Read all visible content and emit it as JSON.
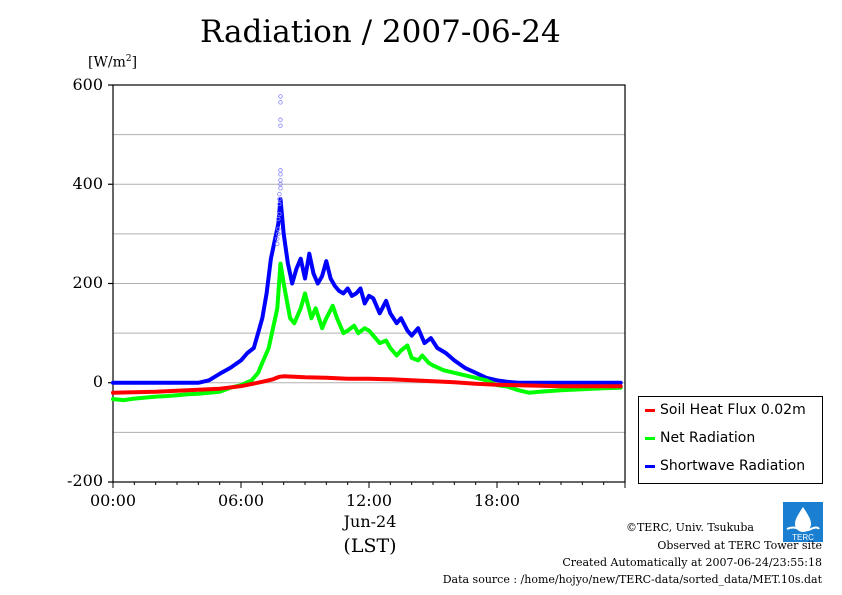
{
  "chart_data": {
    "type": "line",
    "title": "Radiation / 2007-06-24",
    "ylabel": "[W/m2]",
    "ylabel_base": "[W/m",
    "ylabel_sup": "2",
    "ylabel_end": "]",
    "xlabel": "(LST)",
    "xlabel_date": "Jun-24",
    "ylim": [
      -200,
      600
    ],
    "yticks": [
      -200,
      0,
      200,
      400,
      600
    ],
    "xlim": [
      0,
      24
    ],
    "xticks": [
      0,
      6,
      12,
      18
    ],
    "xtick_labels": [
      "00:00",
      "06:00",
      "12:00",
      "18:00"
    ],
    "grid": "horizontal",
    "legend_position": "bottom-right",
    "series": [
      {
        "name": "Soil Heat Flux 0.02m",
        "color": "#ff0000",
        "x": [
          0,
          1,
          2,
          3,
          4,
          5,
          6,
          7,
          7.5,
          7.8,
          8,
          9,
          10,
          11,
          12,
          13,
          14,
          15,
          16,
          17,
          18,
          19,
          20,
          21,
          22,
          23,
          23.8
        ],
        "values": [
          -20,
          -19,
          -18,
          -16,
          -14,
          -12,
          -7,
          2,
          7,
          12,
          13,
          11,
          10,
          8,
          8,
          7,
          5,
          3,
          1,
          -2,
          -4,
          -5,
          -6,
          -7,
          -7,
          -7,
          -7
        ]
      },
      {
        "name": "Net Radiation",
        "color": "#00ff00",
        "x": [
          0,
          0.5,
          1,
          1.5,
          2,
          2.5,
          3,
          3.5,
          4,
          4.5,
          5,
          5.5,
          6,
          6.5,
          6.8,
          7,
          7.3,
          7.5,
          7.7,
          7.85,
          8,
          8.3,
          8.5,
          8.8,
          9,
          9.3,
          9.5,
          9.8,
          10,
          10.3,
          10.5,
          10.8,
          11,
          11.3,
          11.5,
          11.8,
          12,
          12.3,
          12.5,
          12.8,
          13,
          13.3,
          13.5,
          13.8,
          14,
          14.3,
          14.5,
          14.8,
          15,
          15.5,
          16,
          16.5,
          17,
          17.5,
          18,
          18.5,
          19,
          19.5,
          20,
          21,
          22,
          23,
          23.8
        ],
        "values": [
          -33,
          -35,
          -32,
          -30,
          -28,
          -27,
          -25,
          -23,
          -22,
          -20,
          -18,
          -10,
          -5,
          5,
          20,
          40,
          70,
          110,
          150,
          240,
          200,
          130,
          120,
          150,
          180,
          130,
          150,
          110,
          130,
          155,
          130,
          100,
          105,
          115,
          100,
          110,
          105,
          90,
          80,
          85,
          70,
          55,
          65,
          75,
          50,
          45,
          55,
          40,
          35,
          25,
          20,
          15,
          10,
          5,
          -5,
          -8,
          -15,
          -20,
          -18,
          -15,
          -13,
          -11,
          -10
        ]
      },
      {
        "name": "Shortwave Radiation",
        "color": "#0000ff",
        "x": [
          0,
          1,
          2,
          3,
          4,
          4.5,
          5,
          5.5,
          6,
          6.3,
          6.6,
          6.8,
          7,
          7.2,
          7.4,
          7.6,
          7.75,
          7.85,
          8,
          8.2,
          8.4,
          8.6,
          8.8,
          9,
          9.2,
          9.4,
          9.6,
          9.8,
          10,
          10.2,
          10.4,
          10.6,
          10.8,
          11,
          11.2,
          11.4,
          11.6,
          11.8,
          12,
          12.2,
          12.5,
          12.8,
          13,
          13.3,
          13.5,
          13.8,
          14,
          14.3,
          14.6,
          14.9,
          15.2,
          15.6,
          16,
          16.5,
          17,
          17.5,
          18,
          18.5,
          19,
          20,
          21,
          22,
          23,
          23.8
        ],
        "values": [
          0,
          0,
          0,
          0,
          0,
          5,
          18,
          30,
          45,
          60,
          70,
          100,
          130,
          180,
          250,
          290,
          320,
          370,
          300,
          240,
          200,
          230,
          250,
          210,
          260,
          220,
          200,
          215,
          245,
          210,
          195,
          185,
          180,
          190,
          175,
          180,
          190,
          160,
          175,
          170,
          140,
          165,
          140,
          120,
          130,
          105,
          95,
          110,
          80,
          90,
          70,
          60,
          45,
          30,
          20,
          10,
          5,
          2,
          0,
          0,
          0,
          0,
          0,
          0
        ]
      }
    ],
    "scatter_points": {
      "name": "Shortwave Radiation (10s points)",
      "color": "#8888ff",
      "x": [
        7.85,
        7.85,
        7.85,
        7.85,
        7.85,
        7.85,
        7.85,
        7.85,
        7.85,
        7.8,
        7.8,
        7.8,
        7.8,
        7.75,
        7.75,
        7.75,
        7.7,
        7.7
      ],
      "values": [
        577,
        565,
        530,
        518,
        428,
        420,
        408,
        400,
        392,
        380,
        370,
        360,
        340,
        330,
        310,
        300,
        290,
        280
      ]
    }
  },
  "footer": {
    "copyright": "©TERC, Univ. Tsukuba",
    "site": "Observed at TERC Tower site",
    "created": "Created Automatically at 2007-06-24/23:55:18",
    "source": "Data source : /home/hojyo/new/TERC-data/sorted_data/MET.10s.dat"
  },
  "logo_text": "TERC"
}
